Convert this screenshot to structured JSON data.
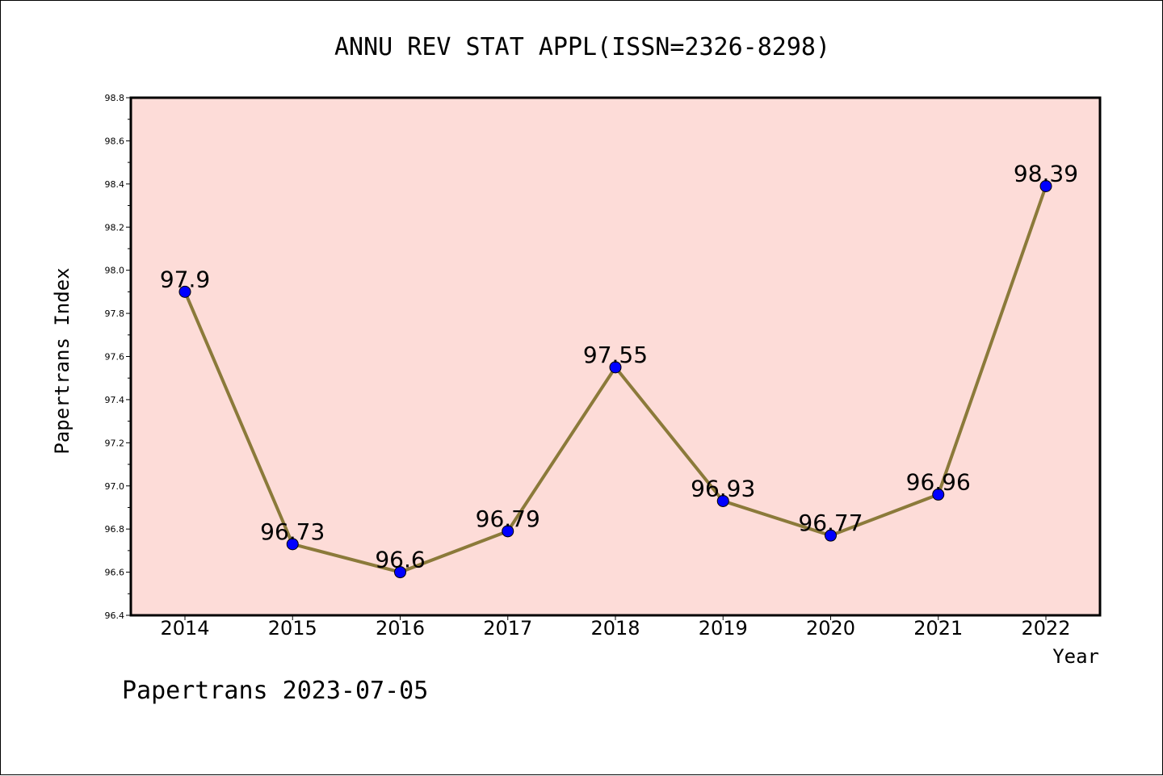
{
  "chart_data": {
    "type": "line",
    "title": "ANNU REV STAT APPL(ISSN=2326-8298)",
    "xlabel": "Year",
    "ylabel": "Papertrans Index",
    "categories": [
      "2014",
      "2015",
      "2016",
      "2017",
      "2018",
      "2019",
      "2020",
      "2021",
      "2022"
    ],
    "values": [
      97.9,
      96.73,
      96.6,
      96.79,
      97.55,
      96.93,
      96.77,
      96.96,
      98.39
    ],
    "data_labels": [
      "97.9",
      "96.73",
      "96.6",
      "96.79",
      "97.55",
      "96.93",
      "96.77",
      "96.96",
      "98.39"
    ],
    "ylim": [
      96.4,
      98.8
    ],
    "yticks": [
      "96.4",
      "96.6",
      "96.8",
      "97.0",
      "97.2",
      "97.4",
      "97.6",
      "97.8",
      "98.0",
      "98.2",
      "98.4",
      "98.6",
      "98.8"
    ],
    "grid": false,
    "legend": "none",
    "colors": {
      "plot_background": "#fddcd8",
      "line": "#8b7a3a",
      "marker": "#0000ff"
    }
  },
  "footer": "Papertrans 2023-07-05"
}
